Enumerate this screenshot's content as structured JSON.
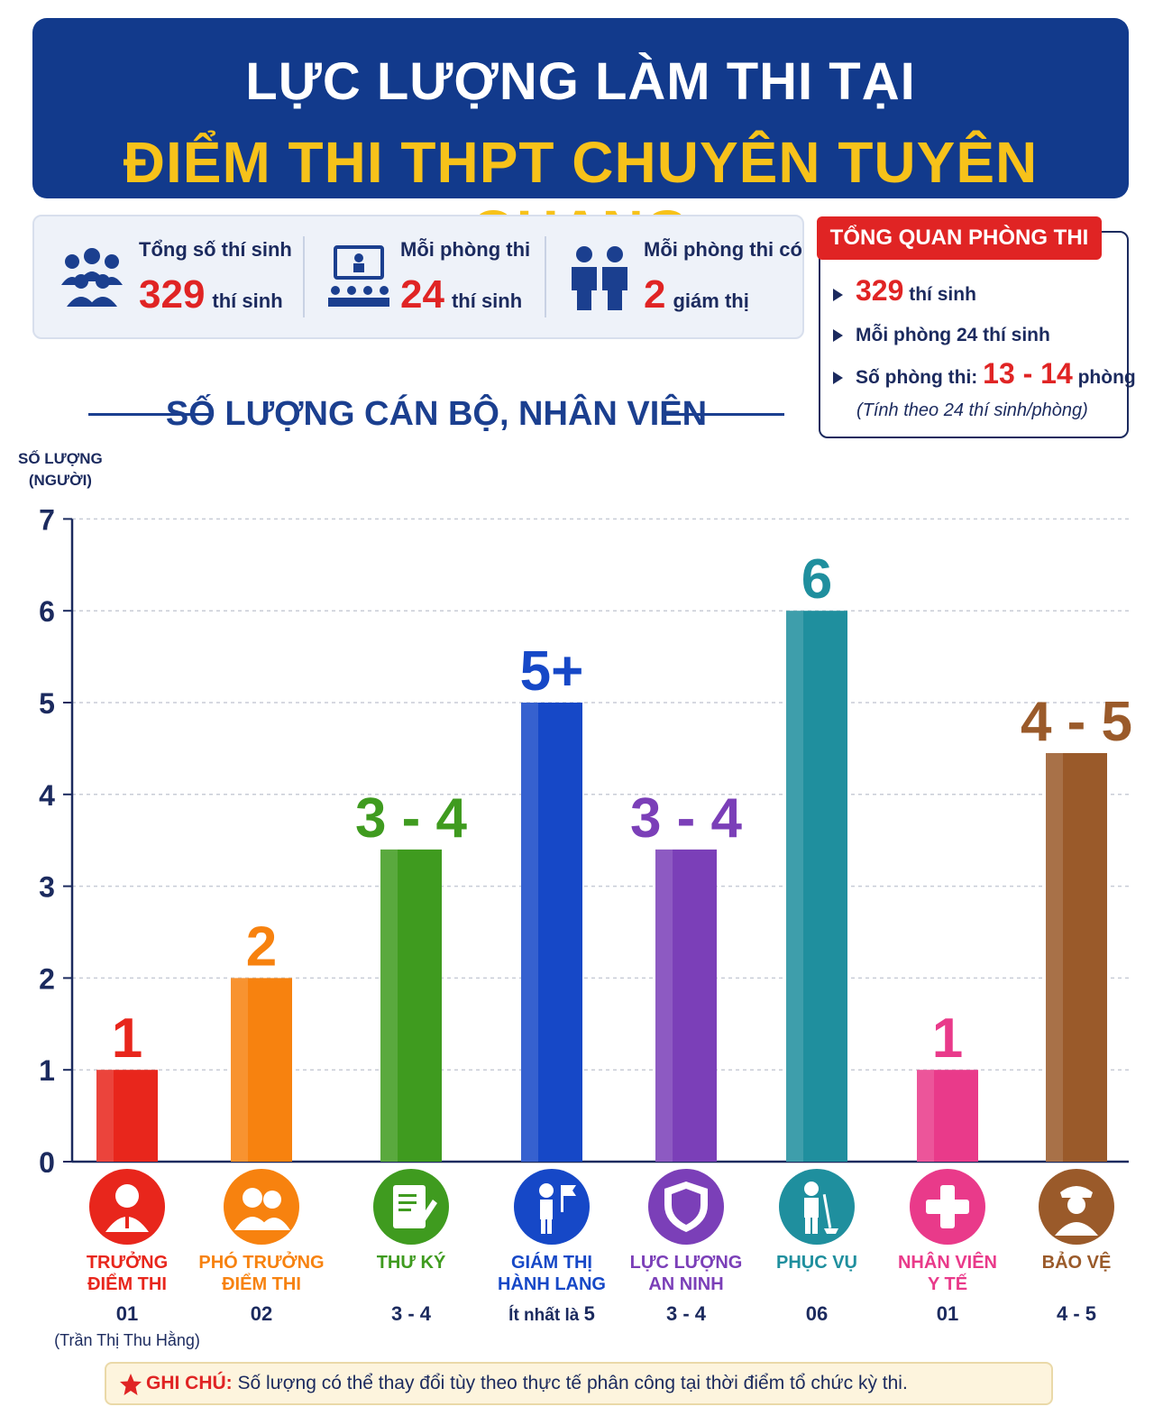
{
  "banner": {
    "line1": "LỰC LƯỢNG LÀM THI TẠI",
    "line2": "ĐIỂM THI THPT CHUYÊN TUYÊN QUANG"
  },
  "stats": [
    {
      "label": "Tổng số thí sinh",
      "value": "329",
      "unit": "thí sinh",
      "icon": "group-icon"
    },
    {
      "label": "Mỗi phòng thi",
      "value": "24",
      "unit": "thí sinh",
      "icon": "classroom-icon"
    },
    {
      "label": "Mỗi phòng thi có",
      "value": "2",
      "unit": "giám thị",
      "icon": "supervisors-icon"
    }
  ],
  "overview": {
    "title": "TỔNG QUAN PHÒNG THI",
    "item1_value": "329",
    "item1_unit": "thí sinh",
    "item2": "Mỗi phòng 24 thí sinh",
    "item3_label": "Số phòng thi:",
    "item3_value": "13 - 14",
    "item3_unit": "phòng",
    "note": "(Tính theo 24 thí sinh/phòng)"
  },
  "section_title": "SỐ LƯỢNG CÁN BỘ, NHÂN VIÊN",
  "chart_data": {
    "type": "bar",
    "ylabel_line1": "SỐ LƯỢNG",
    "ylabel_line2": "(NGƯỜI)",
    "ylim": [
      0,
      7
    ],
    "yticks": [
      "0",
      "1",
      "2",
      "3",
      "4",
      "5",
      "6",
      "7"
    ],
    "grid": true,
    "categories": [
      "TRƯỞNG\nĐIỂM THI",
      "PHÓ TRƯỞNG\nĐIỂM THI",
      "THƯ KÝ",
      "GIÁM THỊ\nHÀNH LANG",
      "LỰC LƯỢNG\nAN NINH",
      "PHỤC VỤ",
      "NHÂN VIÊN\nY TẾ",
      "BẢO VỆ"
    ],
    "values": [
      1,
      2,
      3.4,
      5,
      3.4,
      6,
      1,
      4.45
    ],
    "data_labels": [
      "1",
      "2",
      "3 - 4",
      "5+",
      "3 - 4",
      "6",
      "1",
      "4 - 5"
    ],
    "colors": [
      "#e8261c",
      "#f7820f",
      "#3f9b1f",
      "#1648c7",
      "#7b3fb8",
      "#1f8f9e",
      "#e93a8a",
      "#9a5a2a"
    ],
    "counts": [
      "01",
      "02",
      "3 - 4",
      "Ít nhất là 5",
      "3 - 4",
      "06",
      "01",
      "4 - 5"
    ],
    "sub_notes": [
      "(Trần Thị Thu Hằng)",
      "",
      "",
      "",
      "",
      "",
      "",
      ""
    ],
    "icons": [
      "leader-icon",
      "deputy-icon",
      "notes-icon",
      "flag-person-icon",
      "shield-icon",
      "cleaner-icon",
      "medical-cross-icon",
      "guard-icon"
    ]
  },
  "note": {
    "label": "GHI CHÚ:",
    "text": " Số lượng có thể thay đổi tùy theo thực tế phân công tại thời điểm tổ chức kỳ thi."
  }
}
